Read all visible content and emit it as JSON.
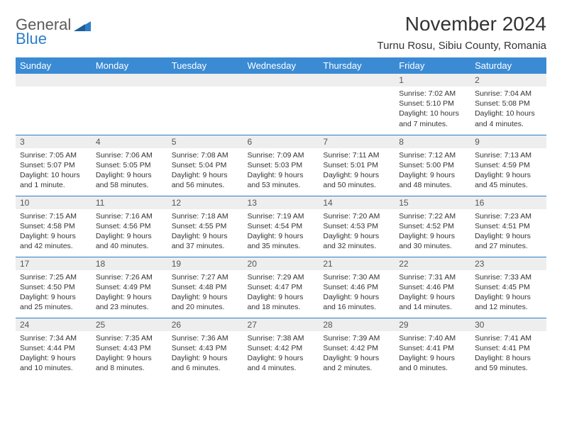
{
  "brand": {
    "line1": "General",
    "line2": "Blue",
    "logo_color": "#2d7dc8",
    "text_color": "#5a5a5a"
  },
  "title": "November 2024",
  "location": "Turnu Rosu, Sibiu County, Romania",
  "colors": {
    "header_bg": "#3b8bd4",
    "header_text": "#ffffff",
    "row_border": "#2d7dc8",
    "daynum_bg": "#eeeeee",
    "body_text": "#333333"
  },
  "fonts": {
    "title_size": 28,
    "location_size": 15,
    "dayheader_size": 13,
    "body_size": 10.5
  },
  "day_headers": [
    "Sunday",
    "Monday",
    "Tuesday",
    "Wednesday",
    "Thursday",
    "Friday",
    "Saturday"
  ],
  "weeks": [
    [
      {
        "empty": true
      },
      {
        "empty": true
      },
      {
        "empty": true
      },
      {
        "empty": true
      },
      {
        "empty": true
      },
      {
        "n": "1",
        "sunrise": "7:02 AM",
        "sunset": "5:10 PM",
        "daylight": "10 hours and 7 minutes."
      },
      {
        "n": "2",
        "sunrise": "7:04 AM",
        "sunset": "5:08 PM",
        "daylight": "10 hours and 4 minutes."
      }
    ],
    [
      {
        "n": "3",
        "sunrise": "7:05 AM",
        "sunset": "5:07 PM",
        "daylight": "10 hours and 1 minute."
      },
      {
        "n": "4",
        "sunrise": "7:06 AM",
        "sunset": "5:05 PM",
        "daylight": "9 hours and 58 minutes."
      },
      {
        "n": "5",
        "sunrise": "7:08 AM",
        "sunset": "5:04 PM",
        "daylight": "9 hours and 56 minutes."
      },
      {
        "n": "6",
        "sunrise": "7:09 AM",
        "sunset": "5:03 PM",
        "daylight": "9 hours and 53 minutes."
      },
      {
        "n": "7",
        "sunrise": "7:11 AM",
        "sunset": "5:01 PM",
        "daylight": "9 hours and 50 minutes."
      },
      {
        "n": "8",
        "sunrise": "7:12 AM",
        "sunset": "5:00 PM",
        "daylight": "9 hours and 48 minutes."
      },
      {
        "n": "9",
        "sunrise": "7:13 AM",
        "sunset": "4:59 PM",
        "daylight": "9 hours and 45 minutes."
      }
    ],
    [
      {
        "n": "10",
        "sunrise": "7:15 AM",
        "sunset": "4:58 PM",
        "daylight": "9 hours and 42 minutes."
      },
      {
        "n": "11",
        "sunrise": "7:16 AM",
        "sunset": "4:56 PM",
        "daylight": "9 hours and 40 minutes."
      },
      {
        "n": "12",
        "sunrise": "7:18 AM",
        "sunset": "4:55 PM",
        "daylight": "9 hours and 37 minutes."
      },
      {
        "n": "13",
        "sunrise": "7:19 AM",
        "sunset": "4:54 PM",
        "daylight": "9 hours and 35 minutes."
      },
      {
        "n": "14",
        "sunrise": "7:20 AM",
        "sunset": "4:53 PM",
        "daylight": "9 hours and 32 minutes."
      },
      {
        "n": "15",
        "sunrise": "7:22 AM",
        "sunset": "4:52 PM",
        "daylight": "9 hours and 30 minutes."
      },
      {
        "n": "16",
        "sunrise": "7:23 AM",
        "sunset": "4:51 PM",
        "daylight": "9 hours and 27 minutes."
      }
    ],
    [
      {
        "n": "17",
        "sunrise": "7:25 AM",
        "sunset": "4:50 PM",
        "daylight": "9 hours and 25 minutes."
      },
      {
        "n": "18",
        "sunrise": "7:26 AM",
        "sunset": "4:49 PM",
        "daylight": "9 hours and 23 minutes."
      },
      {
        "n": "19",
        "sunrise": "7:27 AM",
        "sunset": "4:48 PM",
        "daylight": "9 hours and 20 minutes."
      },
      {
        "n": "20",
        "sunrise": "7:29 AM",
        "sunset": "4:47 PM",
        "daylight": "9 hours and 18 minutes."
      },
      {
        "n": "21",
        "sunrise": "7:30 AM",
        "sunset": "4:46 PM",
        "daylight": "9 hours and 16 minutes."
      },
      {
        "n": "22",
        "sunrise": "7:31 AM",
        "sunset": "4:46 PM",
        "daylight": "9 hours and 14 minutes."
      },
      {
        "n": "23",
        "sunrise": "7:33 AM",
        "sunset": "4:45 PM",
        "daylight": "9 hours and 12 minutes."
      }
    ],
    [
      {
        "n": "24",
        "sunrise": "7:34 AM",
        "sunset": "4:44 PM",
        "daylight": "9 hours and 10 minutes."
      },
      {
        "n": "25",
        "sunrise": "7:35 AM",
        "sunset": "4:43 PM",
        "daylight": "9 hours and 8 minutes."
      },
      {
        "n": "26",
        "sunrise": "7:36 AM",
        "sunset": "4:43 PM",
        "daylight": "9 hours and 6 minutes."
      },
      {
        "n": "27",
        "sunrise": "7:38 AM",
        "sunset": "4:42 PM",
        "daylight": "9 hours and 4 minutes."
      },
      {
        "n": "28",
        "sunrise": "7:39 AM",
        "sunset": "4:42 PM",
        "daylight": "9 hours and 2 minutes."
      },
      {
        "n": "29",
        "sunrise": "7:40 AM",
        "sunset": "4:41 PM",
        "daylight": "9 hours and 0 minutes."
      },
      {
        "n": "30",
        "sunrise": "7:41 AM",
        "sunset": "4:41 PM",
        "daylight": "8 hours and 59 minutes."
      }
    ]
  ],
  "labels": {
    "sunrise": "Sunrise:",
    "sunset": "Sunset:",
    "daylight": "Daylight:"
  }
}
